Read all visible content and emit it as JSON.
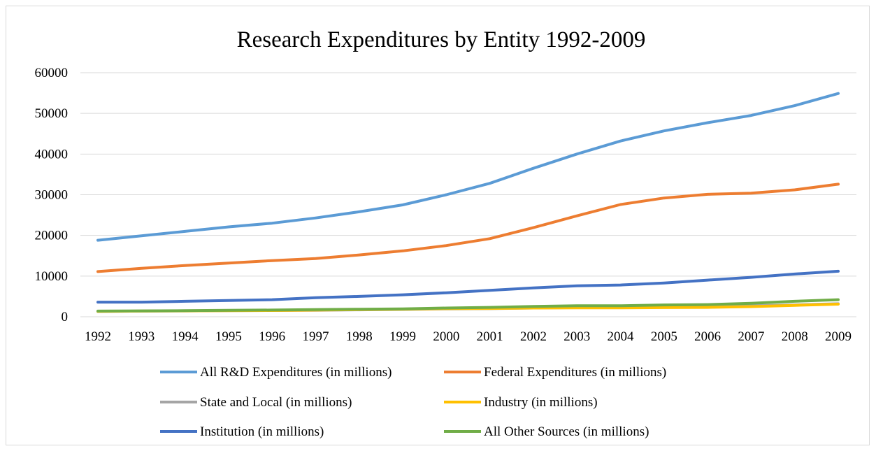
{
  "chart_data": {
    "type": "line",
    "title": "Research Expenditures by Entity 1992-2009",
    "xlabel": "",
    "ylabel": "",
    "x": [
      "1992",
      "1993",
      "1994",
      "1995",
      "1996",
      "1997",
      "1998",
      "1999",
      "2000",
      "2001",
      "2002",
      "2003",
      "2004",
      "2005",
      "2006",
      "2007",
      "2008",
      "2009"
    ],
    "y_ticks": [
      "0",
      "10000",
      "20000",
      "30000",
      "40000",
      "50000",
      "60000"
    ],
    "ylim": [
      0,
      60000
    ],
    "grid": true,
    "legend_position": "bottom",
    "series": [
      {
        "name": "All R&D Expenditures (in millions)",
        "color": "#5b9bd5",
        "values": [
          18800,
          19900,
          21000,
          22100,
          23000,
          24300,
          25800,
          27500,
          30000,
          32800,
          36500,
          40000,
          43200,
          45700,
          47700,
          49500,
          51900,
          54900
        ]
      },
      {
        "name": "Federal Expenditures (in millions)",
        "color": "#ed7d31",
        "values": [
          11100,
          11900,
          12600,
          13200,
          13800,
          14300,
          15200,
          16200,
          17500,
          19200,
          21900,
          24800,
          27600,
          29200,
          30100,
          30400,
          31200,
          32600
        ]
      },
      {
        "name": "State and Local (in millions)",
        "color": "#a5a5a5",
        "values": [
          1300,
          1400,
          1450,
          1500,
          1550,
          1600,
          1700,
          1800,
          1950,
          2000,
          2150,
          2250,
          2300,
          2400,
          2550,
          2700,
          2900,
          3200
        ]
      },
      {
        "name": "Industry (in millions)",
        "color": "#ffc000",
        "values": [
          1300,
          1400,
          1450,
          1500,
          1550,
          1650,
          1750,
          1850,
          2000,
          2050,
          2150,
          2200,
          2200,
          2250,
          2300,
          2500,
          2800,
          3100
        ]
      },
      {
        "name": "Institution (in millions)",
        "color": "#4472c4",
        "values": [
          3600,
          3600,
          3800,
          4000,
          4200,
          4700,
          5000,
          5400,
          5900,
          6500,
          7100,
          7600,
          7800,
          8300,
          9000,
          9700,
          10500,
          11200
        ]
      },
      {
        "name": "All Other Sources (in millions)",
        "color": "#70ad47",
        "values": [
          1400,
          1450,
          1500,
          1600,
          1650,
          1750,
          1850,
          1950,
          2150,
          2300,
          2550,
          2700,
          2700,
          2900,
          3000,
          3300,
          3800,
          4200
        ]
      }
    ]
  }
}
